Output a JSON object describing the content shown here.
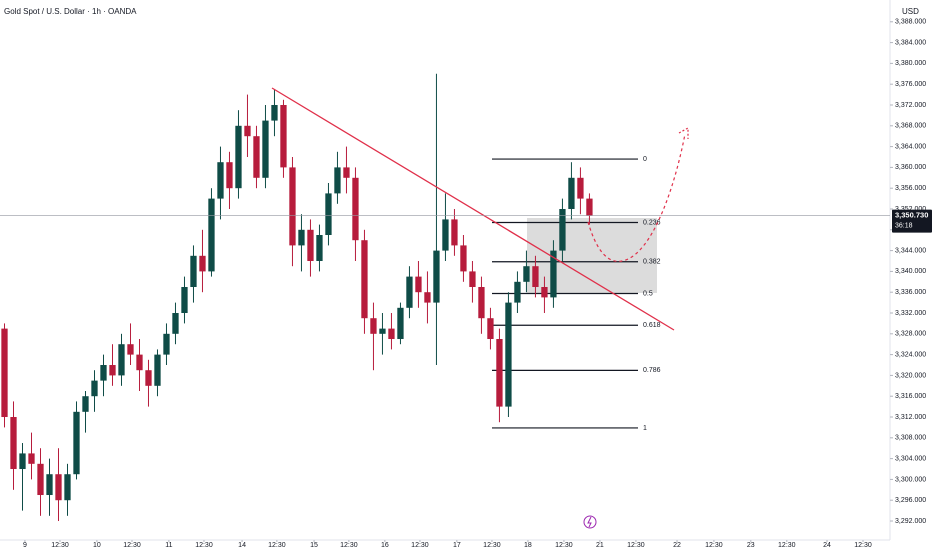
{
  "chart_data": {
    "type": "candlestick",
    "title": "Gold Spot / U.S. Dollar · 1h · OANDA",
    "currency": "USD",
    "up_color": "#0f4c47",
    "down_color": "#b71c3c",
    "x": [
      1.5,
      4.5,
      7.5,
      10.5,
      13.5,
      16.5,
      19.5,
      22.5,
      25.5,
      28.5,
      31.5,
      34.5,
      37.5,
      40.5,
      43.5,
      46.5,
      49.5,
      52.5,
      55.5,
      58.5,
      61.5,
      64.5,
      67.5,
      70.5,
      73.5,
      76.5,
      79.5,
      82.5,
      85.5,
      88.5,
      91.5,
      94.5,
      97.5,
      100.5,
      103.5,
      106.5,
      109.5,
      112.5,
      115.5,
      118.5,
      121.5,
      124.5,
      127.5,
      130.5,
      133.5,
      136.5,
      139.5,
      142.5,
      145.5,
      148.5,
      151.5,
      154.5,
      157.5,
      160.5,
      163.5,
      166.5,
      169.5,
      172.5,
      175.5,
      178.5,
      181.5,
      184.5,
      187.5,
      190.5,
      193.5,
      196.5
    ],
    "open": [
      3329,
      3312,
      3302,
      3305,
      3303,
      3297,
      3301,
      3296,
      3301,
      3313,
      3316,
      3319,
      3322,
      3320,
      3326,
      3324,
      3321,
      3318,
      3324,
      3328,
      3332,
      3337,
      3343,
      3340,
      3354,
      3361,
      3356,
      3368,
      3366,
      3358,
      3369,
      3372,
      3360,
      3345,
      3348,
      3342,
      3347,
      3355,
      3360,
      3358,
      3346,
      3331,
      3328,
      3329,
      3327,
      3333,
      3339,
      3336,
      3334,
      3344,
      3350,
      3345,
      3340,
      3337,
      3331,
      3327,
      3314,
      3334,
      3338,
      3341,
      3337,
      3335,
      3344,
      3352,
      3358,
      3354
    ],
    "high": [
      3330,
      3315,
      3307,
      3309,
      3306,
      3304,
      3306,
      3303,
      3315,
      3317,
      3321,
      3324,
      3326,
      3328,
      3330,
      3327,
      3323,
      3325,
      3330,
      3334,
      3339,
      3345,
      3348,
      3356,
      3364,
      3363,
      3371,
      3374,
      3368,
      3372,
      3375,
      3373,
      3362,
      3351,
      3350,
      3349,
      3357,
      3363,
      3364,
      3360,
      3348,
      3334,
      3332,
      3332,
      3334,
      3341,
      3342,
      3340,
      3378,
      3355,
      3352,
      3347,
      3342,
      3339,
      3333,
      3329,
      3336,
      3340,
      3344,
      3343,
      3339,
      3346,
      3354,
      3361,
      3360,
      3355
    ],
    "low": [
      3310,
      3298,
      3294,
      3300,
      3293,
      3293,
      3292,
      3293,
      3300,
      3309,
      3313,
      3316,
      3318,
      3318,
      3322,
      3317,
      3314,
      3316,
      3322,
      3326,
      3330,
      3334,
      3336,
      3339,
      3350,
      3352,
      3354,
      3362,
      3356,
      3356,
      3366,
      3358,
      3341,
      3340,
      3339,
      3340,
      3345,
      3353,
      3355,
      3342,
      3328,
      3321,
      3324,
      3325,
      3326,
      3331,
      3333,
      3330,
      3322,
      3342,
      3343,
      3338,
      3334,
      3328,
      3325,
      3311,
      3312,
      3332,
      3336,
      3335,
      3332,
      3333,
      3342,
      3350,
      3351,
      3349
    ],
    "close": [
      3312,
      3302,
      3305,
      3303,
      3297,
      3301,
      3296,
      3301,
      3313,
      3316,
      3319,
      3322,
      3320,
      3326,
      3324,
      3321,
      3318,
      3324,
      3328,
      3332,
      3337,
      3343,
      3340,
      3354,
      3361,
      3356,
      3368,
      3366,
      3358,
      3369,
      3372,
      3360,
      3345,
      3348,
      3342,
      3347,
      3355,
      3360,
      3358,
      3346,
      3331,
      3328,
      3329,
      3327,
      3333,
      3339,
      3336,
      3334,
      3344,
      3350,
      3345,
      3340,
      3337,
      3331,
      3327,
      3314,
      3334,
      3338,
      3341,
      3337,
      3335,
      3344,
      3352,
      3358,
      3354,
      3350.73
    ],
    "last_price": {
      "value": 3350.73,
      "label": "3,350.730"
    },
    "countdown": "36:18",
    "fib": {
      "levels": [
        0,
        0.236,
        0.382,
        0.5,
        0.618,
        0.786,
        1
      ],
      "start_price": 3361.6,
      "end_price": 3309.9
    },
    "xlim": [
      0,
      296.7
    ],
    "ylim": [
      3288.35,
      3392.19
    ],
    "yticks": [
      {
        "value": 3292,
        "label": "3,292.000"
      },
      {
        "value": 3296,
        "label": "3,296.000"
      },
      {
        "value": 3300,
        "label": "3,300.000"
      },
      {
        "value": 3304,
        "label": "3,304.000"
      },
      {
        "value": 3308,
        "label": "3,308.000"
      },
      {
        "value": 3312,
        "label": "3,312.000"
      },
      {
        "value": 3316,
        "label": "3,316.000"
      },
      {
        "value": 3320,
        "label": "3,320.000"
      },
      {
        "value": 3324,
        "label": "3,324.000"
      },
      {
        "value": 3328,
        "label": "3,328.000"
      },
      {
        "value": 3332,
        "label": "3,332.000"
      },
      {
        "value": 3336,
        "label": "3,336.000"
      },
      {
        "value": 3340,
        "label": "3,340.000"
      },
      {
        "value": 3344,
        "label": "3,344.000"
      },
      {
        "value": 3348,
        "label": "3,348.000"
      },
      {
        "value": 3352,
        "label": "3,352.000"
      },
      {
        "value": 3356,
        "label": "3,356.000"
      },
      {
        "value": 3360,
        "label": "3,360.000"
      },
      {
        "value": 3364,
        "label": "3,364.000"
      },
      {
        "value": 3368,
        "label": "3,368.000"
      },
      {
        "value": 3372,
        "label": "3,372.000"
      },
      {
        "value": 3376,
        "label": "3,376.000"
      },
      {
        "value": 3380,
        "label": "3,380.000"
      },
      {
        "value": 3384,
        "label": "3,384.000"
      },
      {
        "value": 3388,
        "label": "3,388.000"
      }
    ],
    "xticks": [
      {
        "value": 8.3,
        "label": "9"
      },
      {
        "value": 20,
        "label": "12:30"
      },
      {
        "value": 32.3,
        "label": "10"
      },
      {
        "value": 44,
        "label": "12:30"
      },
      {
        "value": 56.3,
        "label": "11"
      },
      {
        "value": 68,
        "label": "12:30"
      },
      {
        "value": 80.7,
        "label": "14"
      },
      {
        "value": 92.3,
        "label": "12:30"
      },
      {
        "value": 104.7,
        "label": "15"
      },
      {
        "value": 116.3,
        "label": "12:30"
      },
      {
        "value": 128.3,
        "label": "16"
      },
      {
        "value": 140,
        "label": "12:30"
      },
      {
        "value": 152.3,
        "label": "17"
      },
      {
        "value": 164,
        "label": "12:30"
      },
      {
        "value": 176,
        "label": "18"
      },
      {
        "value": 188,
        "label": "12:30"
      },
      {
        "value": 200,
        "label": "21"
      },
      {
        "value": 212,
        "label": "12:30"
      },
      {
        "value": 225.7,
        "label": "22"
      },
      {
        "value": 238,
        "label": "12:30"
      },
      {
        "value": 250.3,
        "label": "23"
      },
      {
        "value": 262.3,
        "label": "12:30"
      },
      {
        "value": 275.7,
        "label": "24"
      },
      {
        "value": 287.7,
        "label": "12:30"
      }
    ]
  }
}
